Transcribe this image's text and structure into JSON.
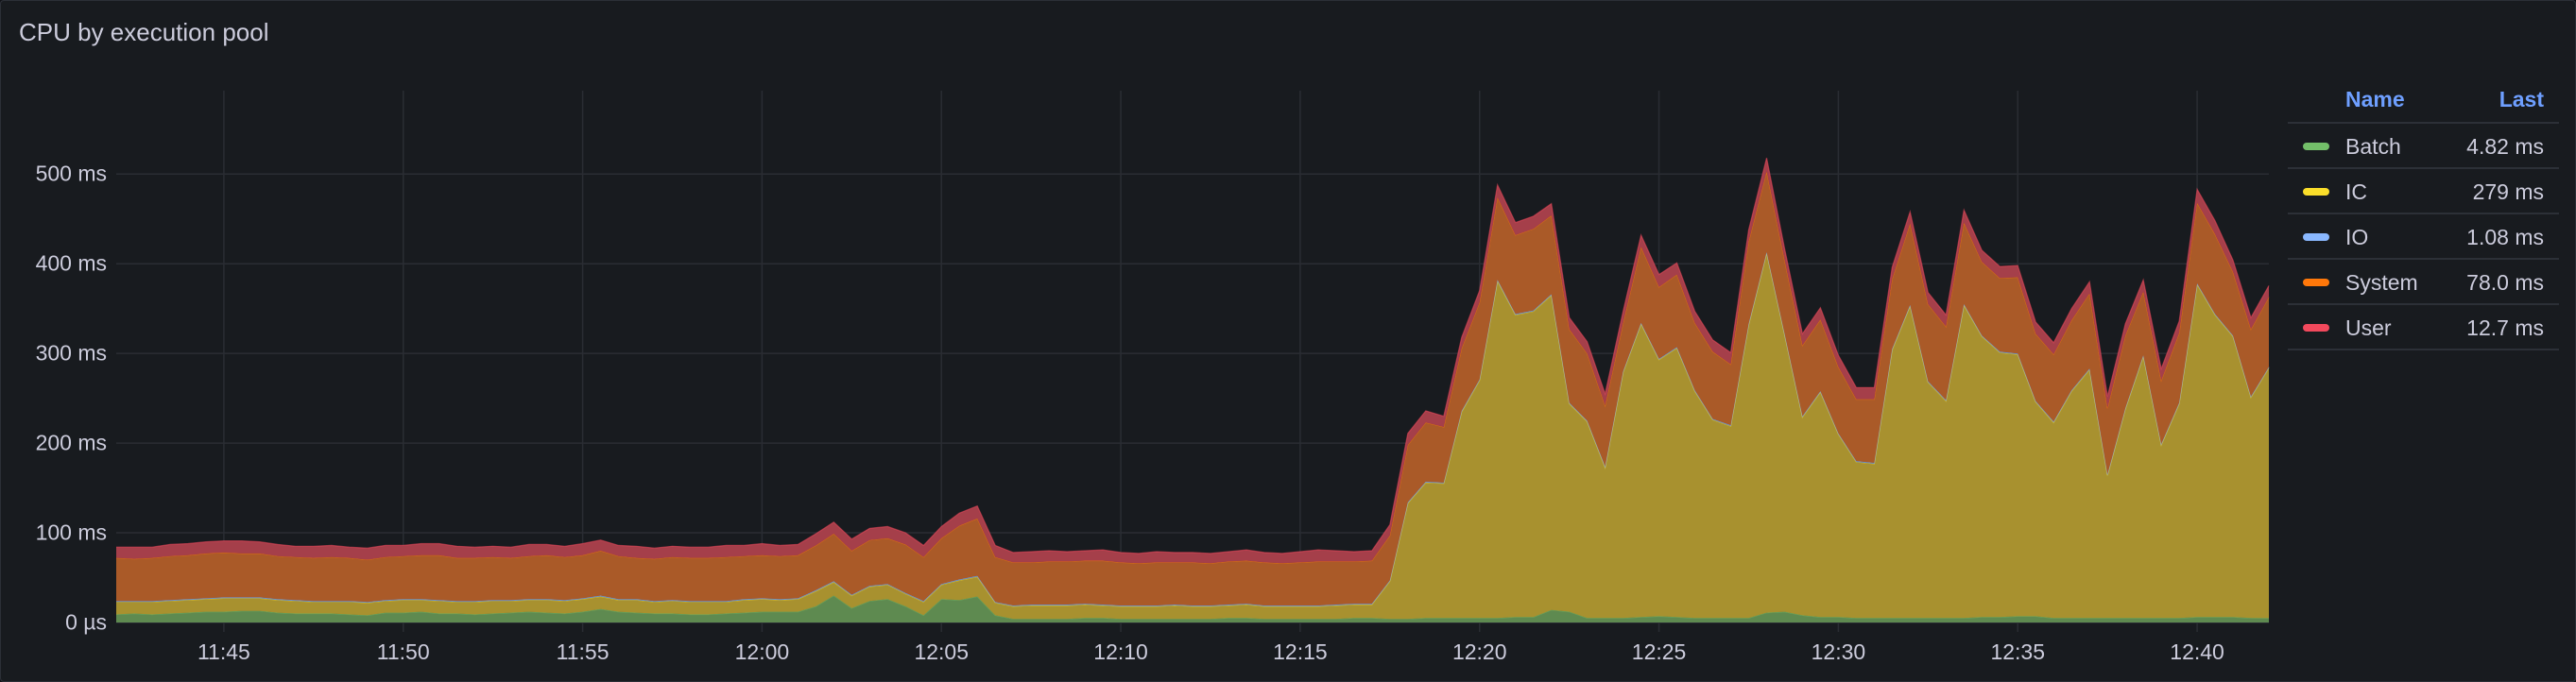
{
  "panel": {
    "title": "CPU by execution pool"
  },
  "legend": {
    "headers": {
      "name": "Name",
      "last": "Last"
    },
    "items": [
      {
        "name": "Batch",
        "last": "4.82 ms",
        "color": "#73bf69"
      },
      {
        "name": "IC",
        "last": "279 ms",
        "color": "#fade2a"
      },
      {
        "name": "IO",
        "last": "1.08 ms",
        "color": "#8ab8ff"
      },
      {
        "name": "System",
        "last": "78.0 ms",
        "color": "#ff780a"
      },
      {
        "name": "User",
        "last": "12.7 ms",
        "color": "#f2495c"
      }
    ]
  },
  "chart_data": {
    "type": "area",
    "stacked": true,
    "title": "CPU by execution pool",
    "xlabel": "",
    "ylabel": "",
    "x_range": [
      "11:42:00",
      "12:42:00"
    ],
    "time_start": "11:42:00",
    "step_seconds": 30,
    "ylim": [
      0,
      593
    ],
    "unit": "ms",
    "grid": true,
    "legend_placement": "right",
    "y_ticks": [
      "0 µs",
      "100 ms",
      "200 ms",
      "300 ms",
      "400 ms",
      "500 ms"
    ],
    "y_tick_values": [
      0,
      100,
      200,
      300,
      400,
      500
    ],
    "x_ticks": [
      "11:45",
      "11:50",
      "11:55",
      "12:00",
      "12:05",
      "12:10",
      "12:15",
      "12:20",
      "12:25",
      "12:30",
      "12:35",
      "12:40"
    ],
    "series": [
      {
        "name": "Batch",
        "color": "#73bf69",
        "fill": "#5e8a50",
        "values": [
          9,
          10,
          9,
          10,
          11,
          12,
          12,
          13,
          13,
          11,
          10,
          10,
          10,
          9,
          8,
          11,
          11,
          12,
          10,
          10,
          9,
          10,
          11,
          12,
          11,
          10,
          12,
          15,
          12,
          11,
          10,
          10,
          9,
          9,
          10,
          11,
          12,
          12,
          12,
          18,
          30,
          16,
          24,
          26,
          18,
          8,
          26,
          25,
          29,
          8,
          4,
          4,
          4,
          4,
          5,
          5,
          4,
          4,
          4,
          4,
          4,
          4,
          5,
          5,
          4,
          4,
          4,
          4,
          4,
          5,
          5,
          4,
          4,
          5,
          5,
          5,
          5,
          5,
          6,
          6,
          14,
          12,
          5,
          5,
          5,
          6,
          7,
          6,
          5,
          5,
          5,
          5,
          11,
          12,
          8,
          6,
          6,
          5,
          5,
          5,
          5,
          5,
          5,
          5,
          6,
          6,
          7,
          7,
          5,
          5,
          5,
          5,
          5,
          5,
          5,
          5,
          6,
          6,
          6,
          5,
          4.82
        ]
      },
      {
        "name": "IC",
        "color": "#fade2a",
        "fill": "#a8912f",
        "values": [
          14,
          13,
          14,
          14,
          14,
          14,
          15,
          14,
          14,
          14,
          14,
          13,
          13,
          14,
          14,
          13,
          14,
          13,
          14,
          13,
          14,
          14,
          13,
          13,
          14,
          14,
          14,
          14,
          13,
          14,
          13,
          14,
          14,
          14,
          13,
          14,
          14,
          13,
          14,
          17,
          15,
          14,
          16,
          16,
          14,
          15,
          16,
          22,
          22,
          14,
          14,
          15,
          15,
          15,
          15,
          14,
          14,
          14,
          14,
          15,
          14,
          14,
          14,
          15,
          14,
          14,
          14,
          14,
          15,
          15,
          15,
          42,
          129,
          151,
          150,
          230,
          265,
          376,
          337,
          341,
          351,
          232,
          219,
          168,
          274,
          327,
          286,
          300,
          253,
          221,
          214,
          327,
          401,
          309,
          221,
          251,
          204,
          174,
          172,
          299,
          348,
          263,
          242,
          349,
          313,
          295,
          292,
          239,
          218,
          253,
          277,
          159,
          233,
          292,
          193,
          239,
          371,
          337,
          313,
          246,
          279
        ]
      },
      {
        "name": "IO",
        "color": "#8ab8ff",
        "fill": "#5f7fb0",
        "values": [
          1,
          1,
          1,
          1,
          1,
          1,
          1,
          1,
          1,
          1,
          1,
          1,
          1,
          1,
          1,
          1,
          1,
          1,
          1,
          1,
          1,
          1,
          1,
          1,
          1,
          1,
          1,
          1,
          1,
          1,
          1,
          1,
          1,
          1,
          1,
          1,
          1,
          1,
          1,
          1,
          1,
          1,
          1,
          1,
          1,
          1,
          1,
          1,
          1,
          1,
          1,
          1,
          1,
          1,
          1,
          1,
          1,
          1,
          1,
          1,
          1,
          1,
          1,
          1,
          1,
          1,
          1,
          1,
          1,
          1,
          1,
          1,
          1,
          1,
          1,
          1,
          1,
          1,
          1,
          1,
          1,
          1,
          1,
          1,
          1,
          1,
          1,
          1,
          1,
          1,
          1,
          1,
          1,
          1,
          1,
          1,
          1,
          1,
          1,
          1,
          1,
          1,
          1,
          1,
          1,
          1,
          1,
          1,
          1,
          1,
          1,
          1,
          1,
          1,
          1,
          1,
          1,
          1,
          1,
          1,
          1.08
        ]
      },
      {
        "name": "System",
        "color": "#ff780a",
        "fill": "#aa5a28",
        "values": [
          48,
          47,
          48,
          49,
          49,
          50,
          50,
          49,
          49,
          48,
          48,
          48,
          49,
          48,
          47,
          48,
          48,
          49,
          50,
          48,
          48,
          48,
          47,
          48,
          49,
          48,
          48,
          50,
          48,
          46,
          47,
          48,
          48,
          48,
          49,
          48,
          48,
          48,
          48,
          50,
          53,
          49,
          51,
          51,
          54,
          49,
          51,
          60,
          64,
          50,
          48,
          47,
          48,
          48,
          48,
          49,
          48,
          47,
          48,
          47,
          48,
          47,
          48,
          48,
          48,
          47,
          48,
          49,
          48,
          47,
          48,
          50,
          64,
          66,
          62,
          70,
          86,
          92,
          88,
          91,
          88,
          82,
          75,
          68,
          54,
          85,
          80,
          81,
          75,
          75,
          68,
          92,
          90,
          82,
          79,
          80,
          74,
          69,
          71,
          78,
          91,
          86,
          82,
          91,
          82,
          82,
          85,
          75,
          75,
          78,
          84,
          74,
          81,
          71,
          71,
          78,
          90,
          89,
          71,
          75,
          78
        ]
      },
      {
        "name": "User",
        "color": "#f2495c",
        "fill": "#a53f4a",
        "values": [
          12,
          13,
          12,
          13,
          13,
          13,
          13,
          14,
          13,
          13,
          12,
          13,
          13,
          12,
          13,
          13,
          12,
          13,
          13,
          13,
          12,
          12,
          12,
          13,
          12,
          12,
          13,
          12,
          12,
          13,
          12,
          12,
          12,
          12,
          13,
          12,
          13,
          12,
          12,
          13,
          13,
          13,
          13,
          13,
          13,
          13,
          13,
          14,
          14,
          13,
          11,
          12,
          12,
          11,
          11,
          12,
          11,
          11,
          12,
          11,
          11,
          11,
          11,
          12,
          11,
          11,
          12,
          13,
          12,
          11,
          11,
          12,
          13,
          13,
          12,
          12,
          13,
          14,
          14,
          14,
          13,
          13,
          13,
          13,
          13,
          13,
          14,
          13,
          13,
          13,
          13,
          13,
          15,
          13,
          13,
          13,
          13,
          13,
          13,
          13,
          13,
          13,
          13,
          14,
          13,
          13,
          13,
          13,
          13,
          13,
          13,
          13,
          13,
          13,
          13,
          13,
          15,
          15,
          13,
          13,
          12.7
        ]
      }
    ]
  }
}
